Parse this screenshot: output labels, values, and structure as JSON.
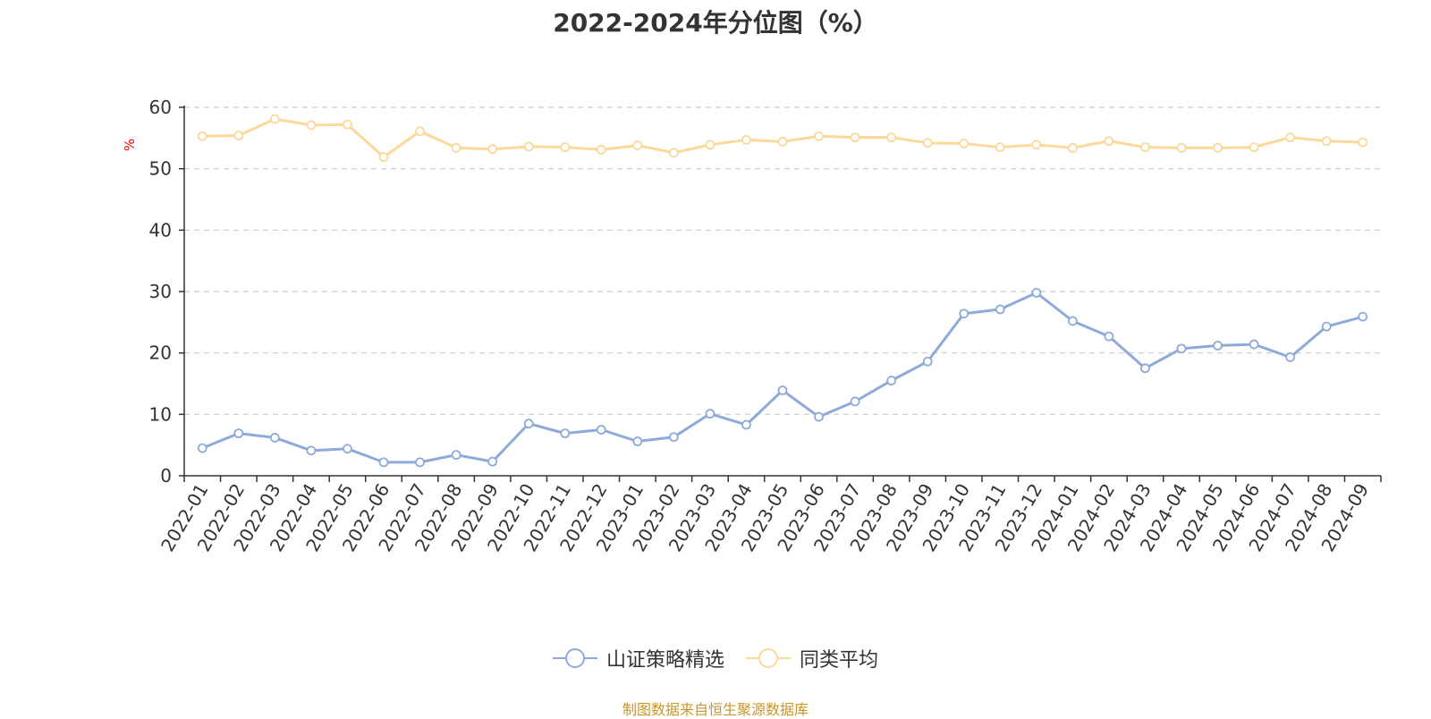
{
  "chart_data": {
    "type": "line",
    "title": "2022-2024年分位图（%）",
    "ylabel": "%",
    "ylim": [
      0,
      60
    ],
    "yticks": [
      0,
      10,
      20,
      30,
      40,
      50,
      60
    ],
    "grid": true,
    "legend_position": "bottom",
    "categories": [
      "2022-01",
      "2022-02",
      "2022-03",
      "2022-04",
      "2022-05",
      "2022-06",
      "2022-07",
      "2022-08",
      "2022-09",
      "2022-10",
      "2022-11",
      "2022-12",
      "2023-01",
      "2023-02",
      "2023-03",
      "2023-04",
      "2023-05",
      "2023-06",
      "2023-07",
      "2023-08",
      "2023-09",
      "2023-10",
      "2023-11",
      "2023-12",
      "2024-01",
      "2024-02",
      "2024-03",
      "2024-04",
      "2024-05",
      "2024-06",
      "2024-07",
      "2024-08",
      "2024-09"
    ],
    "series": [
      {
        "name": "山证策略精选",
        "color": "#8eaad8",
        "values": [
          4.5,
          6.9,
          6.2,
          4.1,
          4.4,
          2.2,
          2.2,
          3.4,
          2.3,
          8.5,
          6.9,
          7.5,
          5.6,
          6.3,
          10.1,
          8.3,
          13.9,
          9.6,
          12.1,
          15.5,
          18.6,
          26.4,
          27.1,
          29.8,
          25.2,
          22.7,
          17.5,
          20.7,
          21.2,
          21.4,
          19.3,
          24.3,
          25.9
        ]
      },
      {
        "name": "同类平均",
        "color": "#fcd89a",
        "values": [
          55.3,
          55.4,
          58.1,
          57.1,
          57.2,
          51.9,
          56.1,
          53.4,
          53.2,
          53.6,
          53.5,
          53.1,
          53.8,
          52.6,
          53.9,
          54.7,
          54.4,
          55.3,
          55.1,
          55.1,
          54.2,
          54.1,
          53.5,
          53.9,
          53.4,
          54.5,
          53.5,
          53.4,
          53.4,
          53.5,
          55.1,
          54.5,
          54.3
        ]
      }
    ]
  },
  "footer": {
    "source": "制图数据来自恒生聚源数据库",
    "source_color": "#c8962b"
  }
}
